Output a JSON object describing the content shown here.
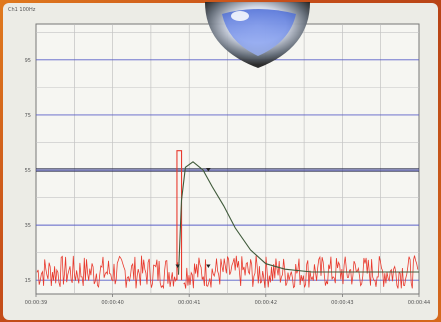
{
  "header": {
    "title": "Ch1 100Hz"
  },
  "chart_data": {
    "type": "line",
    "title": "Ch1 100Hz",
    "ylim": [
      10,
      108
    ],
    "y_ticks": [
      {
        "label": "15",
        "value": 15
      },
      {
        "label": "35",
        "value": 35
      },
      {
        "label": "55",
        "value": 55
      },
      {
        "label": "75",
        "value": 75
      },
      {
        "label": "95",
        "value": 95
      }
    ],
    "x_range": [
      "00:00:39",
      "00:00:44"
    ],
    "x_ticks": [
      "00:00:39",
      "00:00:40",
      "00:00:41",
      "00:00:42",
      "00:00:43",
      "00:00:44"
    ],
    "reference_levels": [
      55
    ],
    "series": [
      {
        "kind": "noise",
        "color": "#e83a2e",
        "baseline": 18,
        "spread": 6
      },
      {
        "kind": "line",
        "color": "#3f5a3a",
        "points": [
          [
            "00:00:40.86",
            17
          ],
          [
            "00:00:40.90",
            44
          ],
          [
            "00:00:40.95",
            56
          ],
          [
            "00:00:41.05",
            58
          ],
          [
            "00:00:41.18",
            55
          ],
          [
            "00:00:41.30",
            49
          ],
          [
            "00:00:41.45",
            42
          ],
          [
            "00:00:41.60",
            34
          ],
          [
            "00:00:41.80",
            26
          ],
          [
            "00:00:42.00",
            21
          ],
          [
            "00:00:42.25",
            19
          ],
          [
            "00:00:42.60",
            18
          ],
          [
            "00:00:43.00",
            18
          ],
          [
            "00:00:44.00",
            18
          ]
        ]
      },
      {
        "kind": "pulse",
        "color": "#e83a2e",
        "start": "00:00:40.84",
        "end": "00:00:40.90",
        "low": 15,
        "high": 62
      }
    ],
    "markers": [
      {
        "at": "00:00:41.25",
        "value": 55
      },
      {
        "at": "00:00:40.85",
        "value": 20
      },
      {
        "at": "00:00:41.25",
        "value": 20
      }
    ]
  }
}
